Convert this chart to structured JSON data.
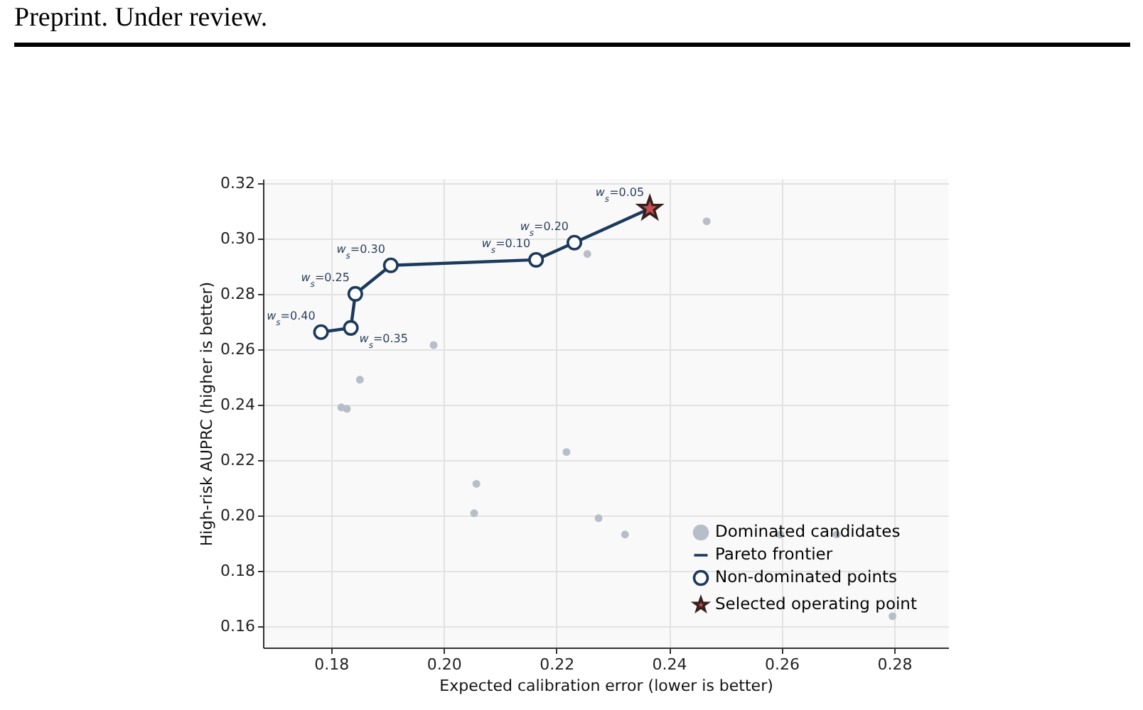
{
  "chart_data": {
    "type": "scatter",
    "xlabel": "Expected calibration error (lower is better)",
    "ylabel": "High-risk AUPRC (higher is better)",
    "xlim": [
      0.1679,
      0.2896
    ],
    "ylim": [
      0.1523,
      0.3215
    ],
    "xticks": [
      0.18,
      {
        "value": 0.2,
        "label": "0.20"
      },
      0.22,
      0.24,
      0.26,
      0.28
    ],
    "yticks": [
      0.16,
      0.18,
      {
        "value": 0.2,
        "label": "0.20"
      },
      0.22,
      0.24,
      0.26,
      0.28,
      {
        "value": 0.3,
        "label": "0.30"
      },
      0.32
    ],
    "grid": true,
    "legend": "bottom right",
    "series": [
      {
        "name": "Dominated candidates",
        "type": "scatter",
        "marker": "circle",
        "color": "#b8bec8",
        "x": [
          0.2467,
          0.2255,
          0.1982,
          0.1851,
          0.1818,
          0.1828,
          0.2218,
          0.2058,
          0.2054,
          0.2275,
          0.2322,
          0.2598,
          0.2698,
          0.2797
        ],
        "values": [
          0.3062,
          0.2944,
          0.2615,
          0.249,
          0.239,
          0.2385,
          0.2229,
          0.2114,
          0.2008,
          0.199,
          0.1931,
          0.1931,
          0.1931,
          0.1636
        ]
      },
      {
        "name": "Pareto frontier",
        "type": "line",
        "marker": "none",
        "color": "#1b3a5c",
        "x": [
          0.1782,
          0.1835,
          0.1843,
          0.1906,
          0.2164,
          0.2232,
          0.2366
        ],
        "values": [
          0.2662,
          0.2677,
          0.28,
          0.2903,
          0.2923,
          0.2985,
          0.3108
        ]
      },
      {
        "name": "Non-dominated points",
        "type": "scatter",
        "marker": "circle",
        "color": "#1b3a5c",
        "x": [
          0.1782,
          0.1835,
          0.1843,
          0.1906,
          0.2164,
          0.2232
        ],
        "values": [
          0.2662,
          0.2677,
          0.28,
          0.2903,
          0.2923,
          0.2985
        ]
      },
      {
        "name": "Selected operating point",
        "type": "scatter",
        "marker": "star",
        "color": "#c44e52",
        "x": [
          0.2366
        ],
        "values": [
          0.3108
        ]
      }
    ],
    "annotations": [
      "Preprint. Under review.",
      {
        "text": "w$_{s}$=0.40",
        "x": 0.1782,
        "y": 0.2662
      },
      {
        "text": "w$_{s}$=0.35",
        "x": 0.1835,
        "y": 0.2677
      },
      {
        "text": "w$_{s}$=0.25",
        "x": 0.1843,
        "y": 0.28
      },
      {
        "text": "w$_{s}$=0.30",
        "x": 0.1906,
        "y": 0.2903
      },
      {
        "text": "w$_{s}$=0.10",
        "x": 0.2164,
        "y": 0.2923
      },
      {
        "text": "w$_{s}$=0.20",
        "x": 0.2232,
        "y": 0.2985
      },
      {
        "text": "w$_{s}$=0.05",
        "x": 0.2366,
        "y": 0.3108
      }
    ]
  }
}
